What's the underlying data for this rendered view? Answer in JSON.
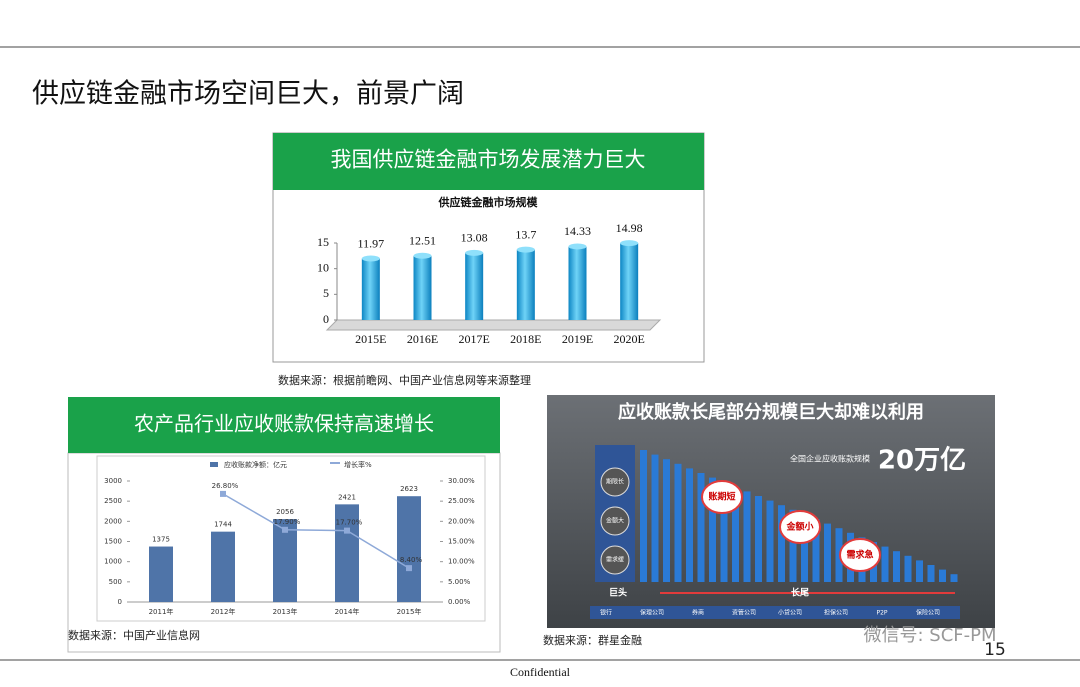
{
  "title": "供应链金融市场空间巨大，前景广阔",
  "panels": [
    {
      "header": "我国供应链金融市场发展潜力巨大",
      "source": "数据来源：根据前瞻网、中国产业信息网等来源整理"
    },
    {
      "header": "农产品行业应收账款保持高速增长",
      "source": "数据来源：中国产业信息网"
    },
    {
      "header": "应收账款长尾部分规模巨大却难以利用",
      "source": "数据来源：群星金融",
      "scale_caption": "全国企业应收账款规模",
      "scale_value": "20万亿",
      "big_traits": [
        "期限长",
        "金额大",
        "需求缓"
      ],
      "tail_traits": [
        "账期短",
        "金额小",
        "需求急"
      ],
      "head": "巨头",
      "tail": "长尾",
      "institutions": [
        "银行",
        "保理公司",
        "券商",
        "资管公司",
        "小贷公司",
        "担保公司",
        "P2P",
        "保险公司"
      ]
    }
  ],
  "chart_data": [
    {
      "type": "bar",
      "title": "供应链金融市场规模",
      "categories": [
        "2015E",
        "2016E",
        "2017E",
        "2018E",
        "2019E",
        "2020E"
      ],
      "values": [
        11.97,
        12.51,
        13.08,
        13.7,
        14.33,
        14.98
      ],
      "color": "#1fb2e8",
      "ylim": [
        0,
        15
      ],
      "yticks": [
        0,
        5,
        10,
        15
      ]
    },
    {
      "type": "bar-line",
      "categories": [
        "2011年",
        "2012年",
        "2013年",
        "2014年",
        "2015年"
      ],
      "series": [
        {
          "name": "应收账款净额：亿元",
          "color": "#4f74a8",
          "values": [
            1375,
            1744,
            2056,
            2421,
            2623
          ]
        },
        {
          "name": "增长率%",
          "color": "#8ea9d8",
          "axis": "y2",
          "values": [
            null,
            26.8,
            17.9,
            17.7,
            8.4
          ],
          "value_labels": [
            null,
            "26.80%",
            "17.90%",
            "17.70%",
            "8.40%"
          ]
        }
      ],
      "ylim": [
        0,
        3000
      ],
      "yticks": [
        0,
        500,
        1000,
        1500,
        2000,
        2500,
        3000
      ],
      "y2lim": [
        0,
        30
      ],
      "y2ticks": [
        {
          "value": 0,
          "label": "0.00%"
        },
        {
          "value": 5,
          "label": "5.00%"
        },
        {
          "value": 10,
          "label": "10.00%"
        },
        {
          "value": 15,
          "label": "15.00%"
        },
        {
          "value": 20,
          "label": "20.00%"
        },
        {
          "value": 25,
          "label": "25.00%"
        },
        {
          "value": 30,
          "label": "30.00%"
        }
      ]
    }
  ],
  "footer": "Confidential",
  "page": "15",
  "watermark": "微信号: SCF-PM"
}
